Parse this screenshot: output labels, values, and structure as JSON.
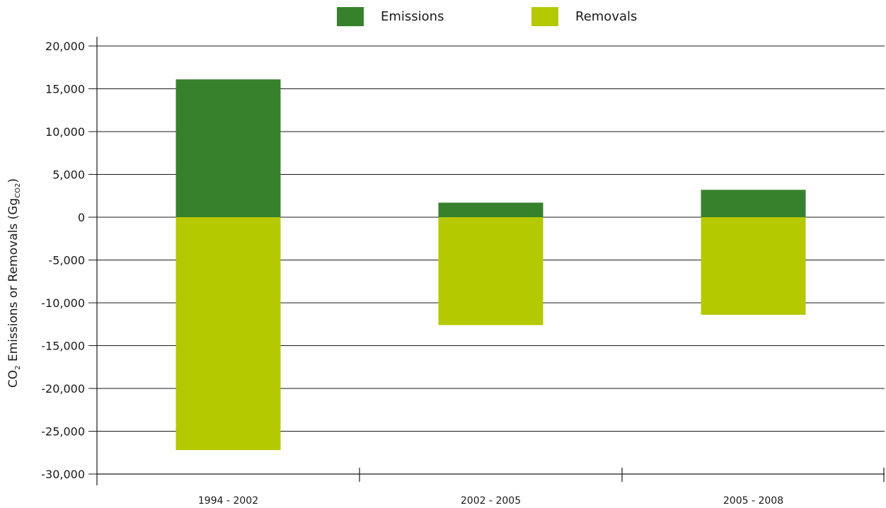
{
  "chart_data": {
    "type": "bar",
    "stacked": true,
    "categories": [
      "1994 - 2002",
      "2002 - 2005",
      "2005 - 2008"
    ],
    "series": [
      {
        "name": "Emissions",
        "color": "#37812c",
        "values": [
          16100,
          1700,
          3200
        ]
      },
      {
        "name": "Removals",
        "color": "#b5c900",
        "values": [
          -27200,
          -12600,
          -11400
        ]
      }
    ],
    "ylim": [
      -30000,
      20000
    ],
    "yticks": [
      20000,
      15000,
      10000,
      5000,
      0,
      -5000,
      -10000,
      -15000,
      -20000,
      -25000,
      -30000
    ],
    "ytick_labels": [
      "20,000",
      "15,000",
      "10,000",
      "5,000",
      "0",
      "-5,000",
      "-10,000",
      "-15,000",
      "-20,000",
      "-25,000",
      "-30,000"
    ],
    "ylabel": {
      "prefix": "CO",
      "prefix_sub": "2",
      "main": " Emissions or Removals (Gg",
      "main_sub": "CO2",
      "suffix": ")"
    },
    "grid": true,
    "legend_position": "top-center"
  }
}
